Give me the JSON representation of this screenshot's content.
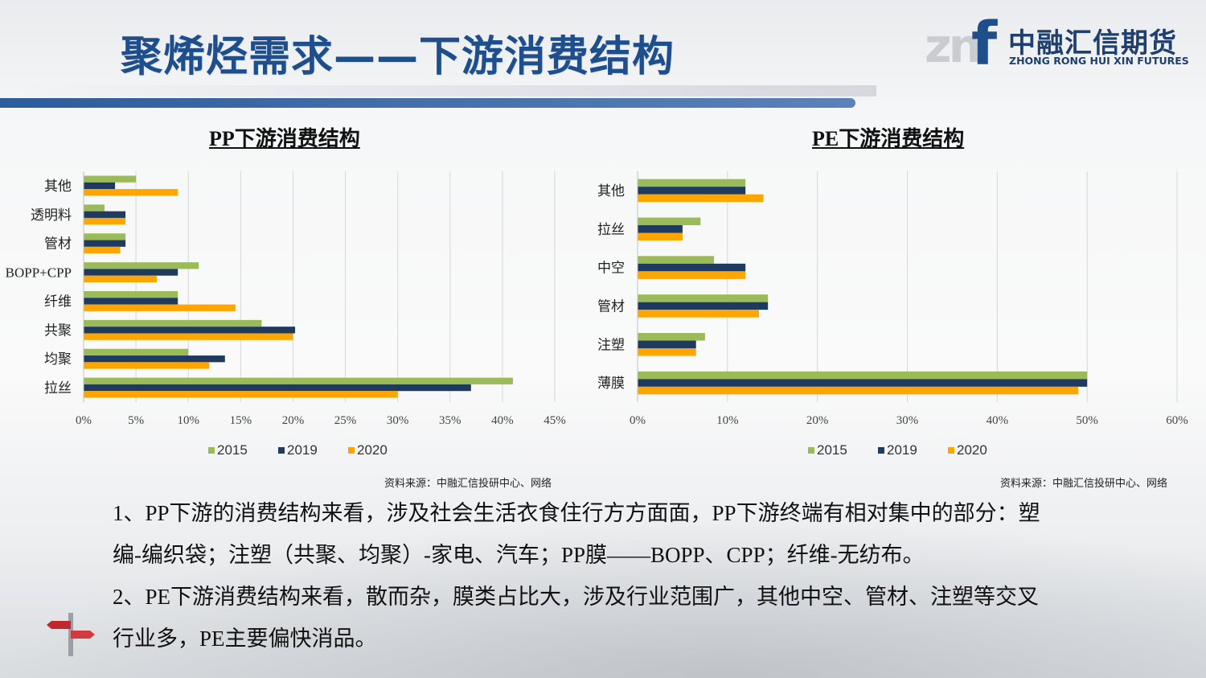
{
  "header": {
    "title": "聚烯烃需求——下游消费结构",
    "logo_mark": "zn",
    "logo_f": "f",
    "logo_cn": "中融汇信期货",
    "logo_en": "ZHONG RONG HUI XIN FUTURES"
  },
  "colors": {
    "series_2015": "#9bbb59",
    "series_2019": "#1f3a5f",
    "series_2020": "#ffa500",
    "title_blue": "#1f4e8c"
  },
  "chart_data": [
    {
      "type": "bar",
      "orientation": "horizontal",
      "title": "PP下游消费结构",
      "categories": [
        "其他",
        "透明料",
        "管材",
        "BOPP+CPP",
        "纤维",
        "共聚",
        "均聚",
        "拉丝"
      ],
      "series": [
        {
          "name": "2015",
          "values": [
            5,
            2,
            4,
            11,
            9,
            17,
            10,
            41
          ]
        },
        {
          "name": "2019",
          "values": [
            3,
            4,
            4,
            9,
            9,
            20.2,
            13.5,
            37
          ]
        },
        {
          "name": "2020",
          "values": [
            9,
            4,
            3.5,
            7,
            14.5,
            20,
            12,
            30
          ]
        }
      ],
      "xlim": [
        0,
        45
      ],
      "xticks": [
        "0%",
        "5%",
        "10%",
        "15%",
        "20%",
        "25%",
        "30%",
        "35%",
        "40%",
        "45%"
      ],
      "grid": true,
      "legend": "bottom",
      "source": "资料来源：中融汇信投研中心、网络"
    },
    {
      "type": "bar",
      "orientation": "horizontal",
      "title": "PE下游消费结构",
      "categories": [
        "其他",
        "拉丝",
        "中空",
        "管材",
        "注塑",
        "薄膜"
      ],
      "series": [
        {
          "name": "2015",
          "values": [
            12,
            7,
            8.5,
            14.5,
            7.5,
            50
          ]
        },
        {
          "name": "2019",
          "values": [
            12,
            5,
            12,
            14.5,
            6.5,
            50
          ]
        },
        {
          "name": "2020",
          "values": [
            14,
            5,
            12,
            13.5,
            6.5,
            49
          ]
        }
      ],
      "xlim": [
        0,
        60
      ],
      "xticks": [
        "0%",
        "10%",
        "20%",
        "30%",
        "40%",
        "50%",
        "60%"
      ],
      "grid": true,
      "legend": "bottom",
      "source": "资料来源：中融汇信投研中心、网络"
    }
  ],
  "text": {
    "para1_line1": "1、PP下游的消费结构来看，涉及社会生活衣食住行方方面面，PP下游终端有相对集中的部分：塑",
    "para1_line2": "编-编织袋；注塑（共聚、均聚）-家电、汽车；PP膜——BOPP、CPP；纤维-无纺布。",
    "para2_line1": "2、PE下游消费结构来看，散而杂，膜类占比大，涉及行业范围广，其他中空、管材、注塑等交叉",
    "para2_line2": "行业多，PE主要偏快消品。"
  }
}
